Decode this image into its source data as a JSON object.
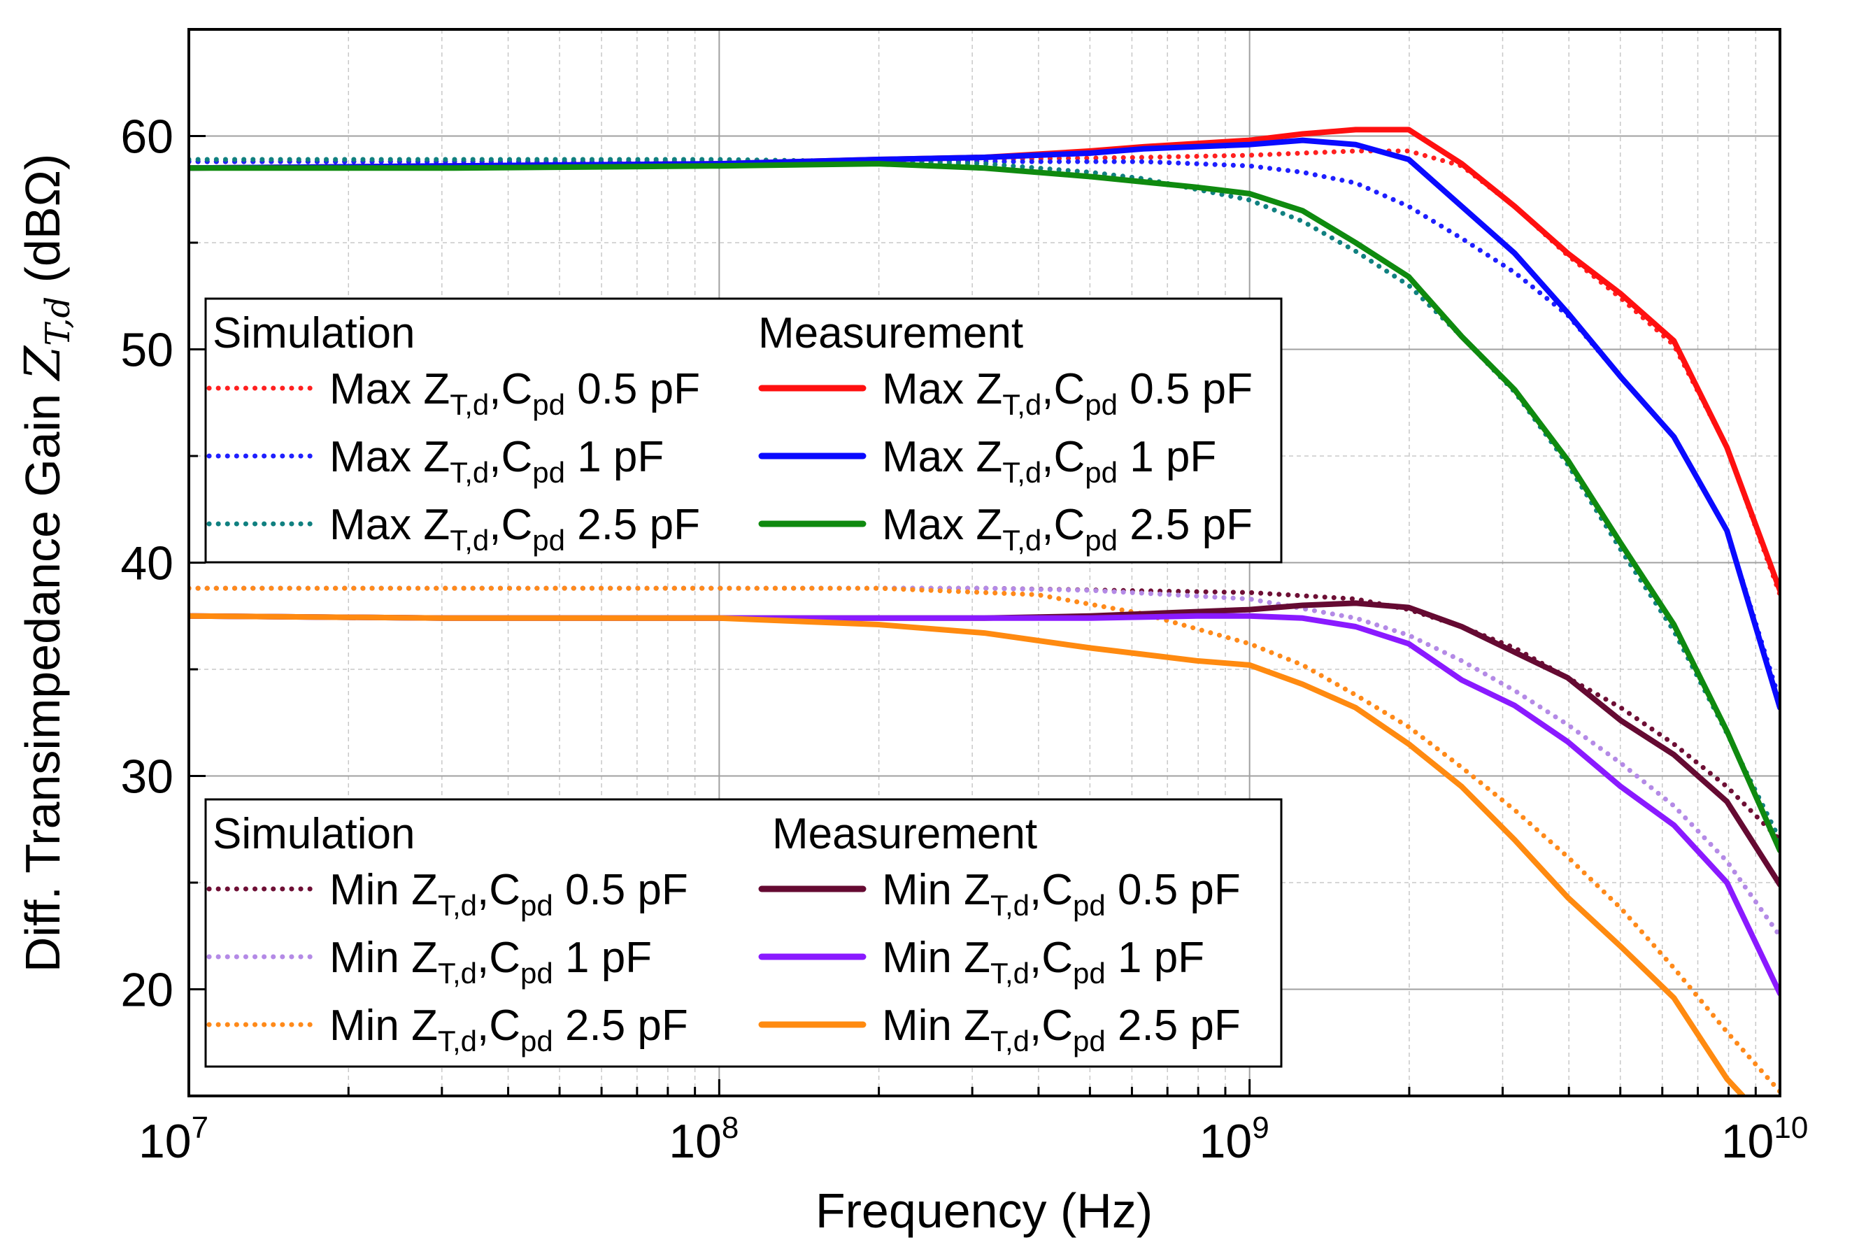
{
  "chart_data": {
    "type": "line",
    "title": "",
    "xlabel": "Frequency (Hz)",
    "ylabel": {
      "pre": "Diff. Transimpedance Gain ",
      "sym": "Z",
      "sub": "T,d",
      "post": " (dBΩ)"
    },
    "xscale": "log",
    "xlim_log10": [
      7,
      10
    ],
    "ylim": [
      15,
      65
    ],
    "grid": true,
    "x_ticks": [
      {
        "base": "10",
        "exp": "7"
      },
      {
        "base": "10",
        "exp": "8"
      },
      {
        "base": "10",
        "exp": "9"
      },
      {
        "base": "10",
        "exp": "10"
      }
    ],
    "y_ticks": [
      "20",
      "30",
      "40",
      "50",
      "60"
    ],
    "y_tick_values": [
      20,
      30,
      40,
      50,
      60
    ],
    "legends": [
      {
        "placement": "middle-left",
        "sim_title": "Simulation",
        "meas_title": "Measurement",
        "series_sim": [
          0,
          1,
          2
        ],
        "series_meas": [
          3,
          4,
          5
        ]
      },
      {
        "placement": "bottom-left",
        "sim_title": "Simulation",
        "meas_title": "Measurement",
        "series_sim": [
          6,
          7,
          8
        ],
        "series_meas": [
          9,
          10,
          11
        ]
      }
    ],
    "series": [
      {
        "name": "Max ZT,d,Cpd 0.5 pF (Simulation)",
        "label": {
          "pre": "Max ",
          "z": "Z",
          "zsub": "T,d",
          "c": ",C",
          "csub": "pd",
          "val": " 0.5 pF"
        },
        "color": "#ff2020",
        "style": "dotted",
        "x_log10": [
          7,
          7.5,
          8,
          8.5,
          8.8,
          9.0,
          9.1,
          9.2,
          9.3,
          9.4,
          9.5,
          9.6,
          9.7,
          9.8,
          9.9,
          10
        ],
        "y": [
          58.8,
          58.8,
          58.8,
          58.9,
          59.0,
          59.1,
          59.2,
          59.3,
          59.3,
          58.6,
          56.7,
          54.4,
          52.4,
          50.2,
          45.4,
          38.5
        ]
      },
      {
        "name": "Max ZT,d,Cpd 1 pF (Simulation)",
        "label": {
          "pre": "Max ",
          "z": "Z",
          "zsub": "T,d",
          "c": ",C",
          "csub": "pd",
          "val": " 1 pF"
        },
        "color": "#1f1fff",
        "style": "dotted",
        "x_log10": [
          7,
          7.5,
          8,
          8.5,
          8.8,
          9.0,
          9.1,
          9.2,
          9.3,
          9.4,
          9.5,
          9.6,
          9.7,
          9.8,
          9.9,
          10
        ],
        "y": [
          58.8,
          58.8,
          58.8,
          58.8,
          58.8,
          58.6,
          58.3,
          57.8,
          56.7,
          55.2,
          53.6,
          51.6,
          48.7,
          45.9,
          41.5,
          33.5
        ]
      },
      {
        "name": "Max ZT,d,Cpd 2.5 pF (Simulation)",
        "label": {
          "pre": "Max ",
          "z": "Z",
          "zsub": "T,d",
          "c": ",C",
          "csub": "pd",
          "val": " 2.5 pF"
        },
        "color": "#108080",
        "style": "dotted",
        "x_log10": [
          7,
          7.5,
          8,
          8.3,
          8.5,
          8.7,
          8.8,
          9.0,
          9.1,
          9.2,
          9.3,
          9.4,
          9.5,
          9.6,
          9.7,
          9.8,
          9.9,
          10
        ],
        "y": [
          58.9,
          58.9,
          58.9,
          58.8,
          58.7,
          58.3,
          58.0,
          57.0,
          56.0,
          54.6,
          53.0,
          50.6,
          48.0,
          44.6,
          40.6,
          36.8,
          32.0,
          27.0
        ]
      },
      {
        "name": "Max ZT,d,Cpd 0.5 pF (Measurement)",
        "label": {
          "pre": "Max ",
          "z": "Z",
          "zsub": "T,d",
          "c": ",C",
          "csub": "pd",
          "val": " 0.5 pF"
        },
        "color": "#ff1010",
        "style": "solid",
        "x_log10": [
          7,
          7.5,
          8,
          8.3,
          8.5,
          8.7,
          8.8,
          9.0,
          9.1,
          9.2,
          9.3,
          9.4,
          9.5,
          9.6,
          9.7,
          9.8,
          9.9,
          10
        ],
        "y": [
          58.5,
          58.6,
          58.7,
          58.9,
          59.0,
          59.3,
          59.5,
          59.8,
          60.1,
          60.3,
          60.3,
          58.7,
          56.7,
          54.5,
          52.6,
          50.4,
          45.4,
          38.7
        ]
      },
      {
        "name": "Max ZT,d,Cpd 1 pF (Measurement)",
        "label": {
          "pre": "Max ",
          "z": "Z",
          "zsub": "T,d",
          "c": ",C",
          "csub": "pd",
          "val": " 1 pF"
        },
        "color": "#0a0aff",
        "style": "solid",
        "x_log10": [
          7,
          7.5,
          8,
          8.3,
          8.5,
          8.7,
          8.8,
          9.0,
          9.1,
          9.2,
          9.3,
          9.4,
          9.5,
          9.6,
          9.7,
          9.8,
          9.9,
          10
        ],
        "y": [
          58.5,
          58.6,
          58.7,
          58.9,
          59.0,
          59.2,
          59.4,
          59.6,
          59.8,
          59.6,
          58.9,
          56.7,
          54.5,
          51.7,
          48.7,
          45.9,
          41.5,
          33.2
        ]
      },
      {
        "name": "Max ZT,d,Cpd 2.5 pF (Measurement)",
        "label": {
          "pre": "Max ",
          "z": "Z",
          "zsub": "T,d",
          "c": ",C",
          "csub": "pd",
          "val": " 2.5 pF"
        },
        "color": "#0f8a0f",
        "style": "solid",
        "x_log10": [
          7,
          7.5,
          8,
          8.3,
          8.5,
          8.7,
          8.9,
          9.0,
          9.1,
          9.2,
          9.3,
          9.4,
          9.5,
          9.6,
          9.7,
          9.8,
          9.9,
          10
        ],
        "y": [
          58.5,
          58.5,
          58.6,
          58.7,
          58.5,
          58.1,
          57.6,
          57.3,
          56.5,
          55.0,
          53.4,
          50.6,
          48.1,
          44.8,
          40.9,
          37.1,
          32.1,
          26.5
        ]
      },
      {
        "name": "Min ZT,d,Cpd 0.5 pF (Simulation)",
        "label": {
          "pre": "Min ",
          "z": "Z",
          "zsub": "T,d",
          "c": ",C",
          "csub": "pd",
          "val": " 0.5 pF"
        },
        "color": "#6e0f35",
        "style": "dotted",
        "x_log10": [
          7,
          7.5,
          8,
          8.5,
          9.0,
          9.2,
          9.3,
          9.4,
          9.5,
          9.6,
          9.7,
          9.8,
          9.9,
          10
        ],
        "y": [
          38.8,
          38.8,
          38.8,
          38.8,
          38.6,
          38.3,
          37.8,
          37.0,
          36.0,
          34.6,
          33.2,
          31.5,
          29.5,
          27.0
        ]
      },
      {
        "name": "Min ZT,d,Cpd 1 pF (Simulation)",
        "label": {
          "pre": "Min ",
          "z": "Z",
          "zsub": "T,d",
          "c": ",C",
          "csub": "pd",
          "val": " 1 pF"
        },
        "color": "#b48ae6",
        "style": "dotted",
        "x_log10": [
          7,
          7.5,
          8,
          8.5,
          8.7,
          9.0,
          9.2,
          9.3,
          9.4,
          9.5,
          9.6,
          9.7,
          9.8,
          9.9,
          10
        ],
        "y": [
          38.8,
          38.8,
          38.8,
          38.8,
          38.7,
          38.3,
          37.4,
          36.6,
          35.4,
          34.0,
          32.4,
          30.6,
          28.6,
          26.0,
          22.5
        ]
      },
      {
        "name": "Min ZT,d,Cpd 2.5 pF (Simulation)",
        "label": {
          "pre": "Min ",
          "z": "Z",
          "zsub": "T,d",
          "c": ",C",
          "csub": "pd",
          "val": " 2.5 pF"
        },
        "color": "#ff8a1a",
        "style": "dotted",
        "x_log10": [
          7,
          7.5,
          8,
          8.3,
          8.6,
          8.8,
          9.0,
          9.1,
          9.2,
          9.3,
          9.4,
          9.5,
          9.6,
          9.7,
          9.8,
          9.9,
          10
        ],
        "y": [
          38.8,
          38.8,
          38.8,
          38.8,
          38.5,
          37.6,
          36.2,
          35.2,
          33.8,
          32.3,
          30.4,
          28.4,
          26.2,
          23.8,
          21.0,
          18.0,
          15.2
        ]
      },
      {
        "name": "Min ZT,d,Cpd 0.5 pF (Measurement)",
        "label": {
          "pre": "Min ",
          "z": "Z",
          "zsub": "T,d",
          "c": ",C",
          "csub": "pd",
          "val": " 0.5 pF"
        },
        "color": "#650a32",
        "style": "solid",
        "x_log10": [
          7,
          7.5,
          8,
          8.3,
          8.5,
          8.7,
          8.9,
          9.0,
          9.1,
          9.2,
          9.3,
          9.4,
          9.5,
          9.6,
          9.7,
          9.8,
          9.9,
          10
        ],
        "y": [
          37.5,
          37.4,
          37.4,
          37.4,
          37.4,
          37.5,
          37.7,
          37.8,
          38.0,
          38.1,
          37.9,
          37.0,
          35.8,
          34.6,
          32.6,
          31.0,
          28.8,
          24.9
        ]
      },
      {
        "name": "Min ZT,d,Cpd 1 pF (Measurement)",
        "label": {
          "pre": "Min ",
          "z": "Z",
          "zsub": "T,d",
          "c": ",C",
          "csub": "pd",
          "val": " 1 pF"
        },
        "color": "#8a1aff",
        "style": "solid",
        "x_log10": [
          7,
          7.5,
          8,
          8.3,
          8.5,
          8.7,
          8.9,
          9.0,
          9.1,
          9.2,
          9.3,
          9.4,
          9.5,
          9.6,
          9.7,
          9.8,
          9.9,
          10
        ],
        "y": [
          37.5,
          37.4,
          37.4,
          37.4,
          37.4,
          37.4,
          37.5,
          37.5,
          37.4,
          37.0,
          36.2,
          34.5,
          33.3,
          31.6,
          29.5,
          27.7,
          25.0,
          19.8
        ]
      },
      {
        "name": "Min ZT,d,Cpd 2.5 pF (Measurement)",
        "label": {
          "pre": "Min ",
          "z": "Z",
          "zsub": "T,d",
          "c": ",C",
          "csub": "pd",
          "val": " 2.5 pF"
        },
        "color": "#ff8a10",
        "style": "solid",
        "x_log10": [
          7,
          7.5,
          8,
          8.3,
          8.5,
          8.7,
          8.9,
          9.0,
          9.1,
          9.2,
          9.3,
          9.4,
          9.5,
          9.6,
          9.7,
          9.8,
          9.9,
          9.93
        ],
        "y": [
          37.5,
          37.4,
          37.4,
          37.1,
          36.7,
          36.0,
          35.4,
          35.2,
          34.3,
          33.2,
          31.5,
          29.5,
          27.0,
          24.3,
          22.0,
          19.6,
          15.8,
          15.0
        ]
      }
    ]
  }
}
